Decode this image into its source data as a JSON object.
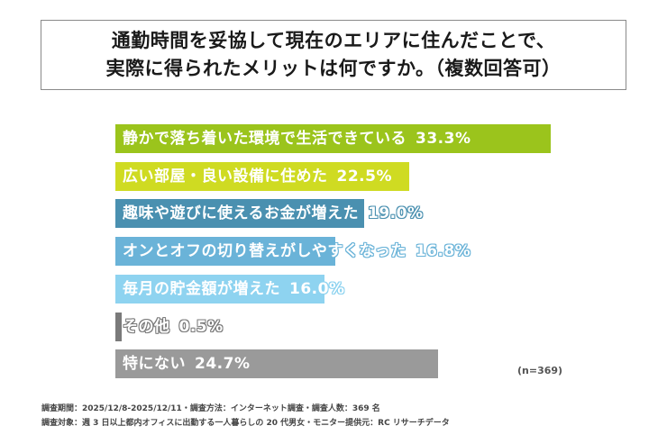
{
  "title": {
    "line1": "通勤時間を妥協して現在のエリアに住んだことで、",
    "line2": "実際に得られたメリットは何ですか。（複数回答可）"
  },
  "sample_note": "(n=369)",
  "footnotes": {
    "line1": "調査期間：2025/12/8-2025/12/11・調査方法：インターネット調査・調査人数：369 名",
    "line2": "調査対象：週 3 日以上都内オフィスに出勤する一人暮らしの 20 代男女・モニター提供元：RC リサーチデータ"
  },
  "chart_data": {
    "type": "bar",
    "orientation": "horizontal",
    "title": "通勤時間を妥協して現在のエリアに住んだことで、実際に得られたメリットは何ですか。（複数回答可）",
    "xlabel": "",
    "ylabel": "",
    "unit": "%",
    "n": 369,
    "categories": [
      "静かで落ち着いた環境で生活できている",
      "広い部屋・良い設備に住めた",
      "趣味や遊びに使えるお金が増えた",
      "オンとオフの切り替えがしやすくなった",
      "毎月の貯金額が増えた",
      "その他",
      "特にない"
    ],
    "values": [
      33.3,
      22.5,
      19.0,
      16.8,
      16.0,
      0.5,
      24.7
    ],
    "value_labels": [
      "33.3%",
      "22.5%",
      "19.0%",
      "16.8%",
      "16.0%",
      "0.5%",
      "24.7%"
    ],
    "colors": [
      "#9bc41c",
      "#cfdb22",
      "#4a90b0",
      "#6ab3d8",
      "#8ed3f0",
      "#7a7a7a",
      "#9a9a9a"
    ],
    "grid": false,
    "legend": "none",
    "xlim": [
      0,
      35
    ]
  }
}
